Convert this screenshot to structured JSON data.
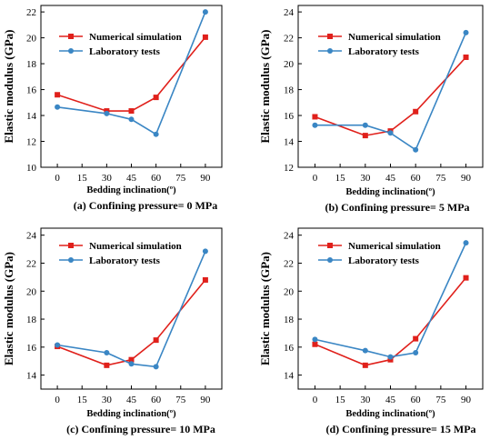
{
  "chart_data": [
    {
      "type": "line",
      "caption": "(a) Confining pressure= 0 MPa",
      "xlabel": "Bedding inclination(º)",
      "ylabel": "Elastic modulus (GPa)",
      "x": [
        0,
        30,
        45,
        60,
        90
      ],
      "xticks": [
        0,
        15,
        30,
        45,
        60,
        75,
        90
      ],
      "xlim": [
        -10,
        100
      ],
      "ylim": [
        10,
        22.5
      ],
      "yticks": [
        10,
        12,
        14,
        16,
        18,
        20,
        22
      ],
      "legend": "top-left",
      "series": [
        {
          "name": "Numerical simulation",
          "color": "#e0201b",
          "marker": "square",
          "values": [
            15.6,
            14.35,
            14.35,
            15.4,
            20.05
          ]
        },
        {
          "name": "Laboratory tests",
          "color": "#3a86c4",
          "marker": "circle",
          "values": [
            14.65,
            14.15,
            13.7,
            12.55,
            22.0
          ]
        }
      ]
    },
    {
      "type": "line",
      "caption": "(b) Confining pressure= 5 MPa",
      "xlabel": "Bedding inclination(º)",
      "ylabel": "Elastic modulus (GPa)",
      "x": [
        0,
        30,
        45,
        60,
        90
      ],
      "xticks": [
        0,
        15,
        30,
        45,
        60,
        75,
        90
      ],
      "xlim": [
        -10,
        100
      ],
      "ylim": [
        12,
        24.5
      ],
      "yticks": [
        12,
        14,
        16,
        18,
        20,
        22,
        24
      ],
      "legend": "top-left",
      "series": [
        {
          "name": "Numerical simulation",
          "color": "#e0201b",
          "marker": "square",
          "values": [
            15.9,
            14.45,
            14.8,
            16.3,
            20.5
          ]
        },
        {
          "name": "Laboratory tests",
          "color": "#3a86c4",
          "marker": "circle",
          "values": [
            15.25,
            15.25,
            14.65,
            13.35,
            22.4
          ]
        }
      ]
    },
    {
      "type": "line",
      "caption": "(c) Confining pressure= 10 MPa",
      "xlabel": "Bedding inclination(º)",
      "ylabel": "Elastic modulus (GPa)",
      "x": [
        0,
        30,
        45,
        60,
        90
      ],
      "xticks": [
        0,
        15,
        30,
        45,
        60,
        75,
        90
      ],
      "xlim": [
        -10,
        100
      ],
      "ylim": [
        13,
        24.5
      ],
      "yticks": [
        14,
        16,
        18,
        20,
        22,
        24
      ],
      "legend": "top-center",
      "series": [
        {
          "name": "Numerical simulation",
          "color": "#e0201b",
          "marker": "square",
          "values": [
            16.05,
            14.7,
            15.1,
            16.5,
            20.8
          ]
        },
        {
          "name": "Laboratory tests",
          "color": "#3a86c4",
          "marker": "circle",
          "values": [
            16.15,
            15.6,
            14.8,
            14.6,
            22.85
          ]
        }
      ]
    },
    {
      "type": "line",
      "caption": "(d) Confining pressure= 15 MPa",
      "xlabel": "Bedding inclination(º)",
      "ylabel": "Elastic modulus (GPa)",
      "x": [
        0,
        30,
        45,
        60,
        90
      ],
      "xticks": [
        0,
        15,
        30,
        45,
        60,
        75,
        90
      ],
      "xlim": [
        -10,
        100
      ],
      "ylim": [
        13,
        24.5
      ],
      "yticks": [
        14,
        16,
        18,
        20,
        22,
        24
      ],
      "legend": "top-center",
      "series": [
        {
          "name": "Numerical simulation",
          "color": "#e0201b",
          "marker": "square",
          "values": [
            16.2,
            14.7,
            15.1,
            16.6,
            20.95
          ]
        },
        {
          "name": "Laboratory tests",
          "color": "#3a86c4",
          "marker": "circle",
          "values": [
            16.55,
            15.75,
            15.3,
            15.6,
            23.45
          ]
        }
      ]
    }
  ]
}
